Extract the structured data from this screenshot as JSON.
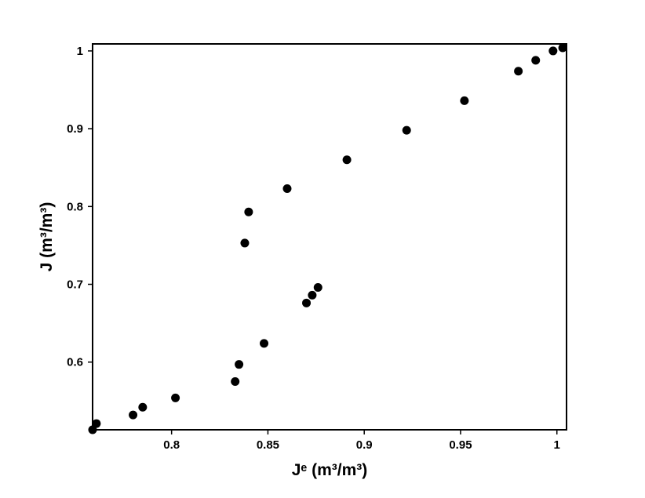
{
  "chart_data": {
    "type": "scatter",
    "x_label": "Jᵉ (m³/m³)",
    "y_label": "J (m³/m³)",
    "xlim": [
      0.759,
      1.005
    ],
    "ylim": [
      0.513,
      1.009
    ],
    "xticks": [
      0.8,
      0.85,
      0.9,
      0.95,
      1
    ],
    "yticks": [
      0.6,
      0.7,
      0.8,
      0.9,
      1
    ],
    "color": "#000000",
    "x": [
      0.759,
      0.761,
      0.78,
      0.785,
      0.802,
      0.833,
      0.835,
      0.848,
      0.87,
      0.873,
      0.876,
      0.838,
      0.84,
      0.86,
      0.891,
      0.922,
      0.952,
      0.98,
      0.989,
      0.998,
      1.003
    ],
    "values": [
      0.513,
      0.521,
      0.532,
      0.542,
      0.554,
      0.575,
      0.597,
      0.624,
      0.676,
      0.686,
      0.696,
      0.753,
      0.793,
      0.823,
      0.86,
      0.898,
      0.936,
      0.974,
      0.988,
      1.0,
      1.004
    ]
  }
}
